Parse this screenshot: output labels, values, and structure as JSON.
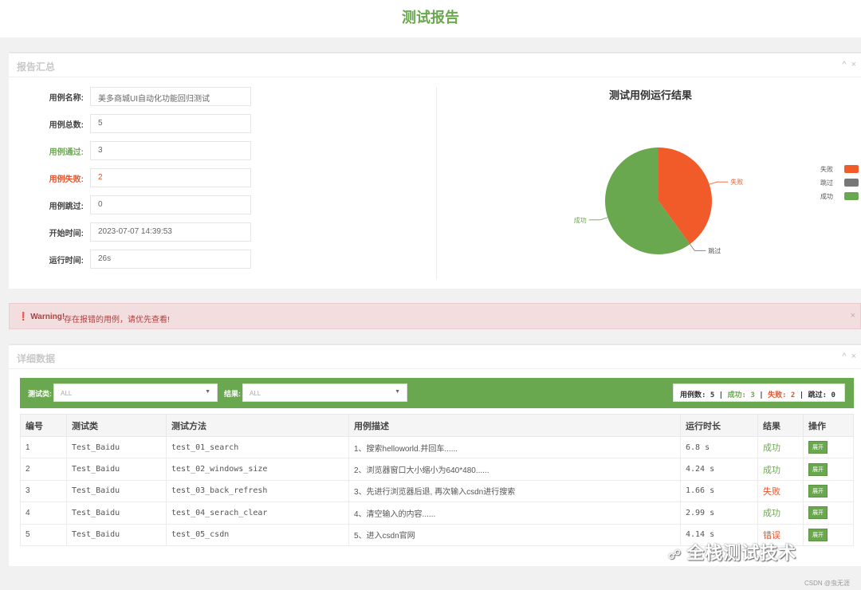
{
  "header": {
    "title": "测试报告"
  },
  "summary": {
    "title": "报告汇总",
    "fields": [
      {
        "label": "用例名称:",
        "value": "美多商城UI自动化功能回归测试",
        "status": "normal"
      },
      {
        "label": "用例总数:",
        "value": "5",
        "status": "normal"
      },
      {
        "label": "用例通过:",
        "value": "3",
        "status": "pass"
      },
      {
        "label": "用例失败:",
        "value": "2",
        "status": "fail"
      },
      {
        "label": "用例跳过:",
        "value": "0",
        "status": "normal"
      },
      {
        "label": "开始时间:",
        "value": "2023-07-07 14:39:53",
        "status": "normal"
      },
      {
        "label": "运行时间:",
        "value": "26s",
        "status": "normal"
      }
    ]
  },
  "chart_data": {
    "type": "pie",
    "title": "测试用例运行结果",
    "slices": [
      {
        "label": "失败",
        "value": 2,
        "color": "#f15a29"
      },
      {
        "label": "跳过",
        "value": 0,
        "color": "#777777"
      },
      {
        "label": "成功",
        "value": 3,
        "color": "#6aa84f"
      }
    ],
    "legend": [
      "失败",
      "跳过",
      "成功"
    ],
    "legend_position": "right"
  },
  "warning": {
    "label": "Warning!",
    "text": "存在报错的用例，请优先查看!"
  },
  "details": {
    "title": "详细数据",
    "filters": {
      "class_label": "测试类:",
      "class_value": "ALL",
      "result_label": "结果:",
      "result_value": "ALL"
    },
    "stats": {
      "total_label": "用例数:",
      "total": "5",
      "success_label": "成功:",
      "success": "3",
      "fail_label": "失败:",
      "fail": "2",
      "skip_label": "跳过:",
      "skip": "0"
    },
    "columns": [
      "编号",
      "测试类",
      "测试方法",
      "用例描述",
      "运行时长",
      "结果",
      "操作"
    ],
    "rows": [
      {
        "id": "1",
        "cls": "Test_Baidu",
        "method": "test_01_search",
        "desc": "1、搜索helloworld.并回车......",
        "duration": "6.8 s",
        "result": "成功",
        "status": "success",
        "action": "展开"
      },
      {
        "id": "2",
        "cls": "Test_Baidu",
        "method": "test_02_windows_size",
        "desc": "2、浏览器窗口大小缩小为640*480......",
        "duration": "4.24 s",
        "result": "成功",
        "status": "success",
        "action": "展开"
      },
      {
        "id": "3",
        "cls": "Test_Baidu",
        "method": "test_03_back_refresh",
        "desc": "3、先进行浏览器后退, 再次输入csdn进行搜索",
        "duration": "1.66 s",
        "result": "失败",
        "status": "fail",
        "action": "展开"
      },
      {
        "id": "4",
        "cls": "Test_Baidu",
        "method": "test_04_serach_clear",
        "desc": "4、清空输入的内容......",
        "duration": "2.99 s",
        "result": "成功",
        "status": "success",
        "action": "展开"
      },
      {
        "id": "5",
        "cls": "Test_Baidu",
        "method": "test_05_csdn",
        "desc": "5、进入csdn官网",
        "duration": "4.14 s",
        "result": "错误",
        "status": "error",
        "action": "展开"
      }
    ]
  },
  "watermark": "全栈测试技术",
  "credit": "CSDN @虫无涯"
}
